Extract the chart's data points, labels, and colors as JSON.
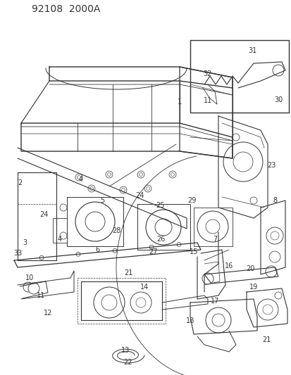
{
  "title": "92108  2000A",
  "bg_color": "#ffffff",
  "line_color": "#333333",
  "title_fontsize": 10,
  "label_fontsize": 7,
  "fig_width": 4.14,
  "fig_height": 5.33,
  "dpi": 100
}
